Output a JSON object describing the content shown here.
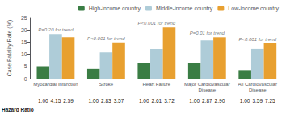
{
  "chart_data": {
    "type": "bar",
    "categories": [
      "Myocardial Infarction",
      "Stroke",
      "Heart Failure",
      "Major Cardiovascular\nDisease",
      "All Cardiovascular\nDisease"
    ],
    "series": [
      {
        "name": "High-income country",
        "color": "#3a7d44",
        "values": [
          5.1,
          4.0,
          6.3,
          6.5,
          3.5
        ],
        "hazard_ratios": [
          "1.00",
          "1.00",
          "1.00",
          "1.00",
          "1.00"
        ]
      },
      {
        "name": "Middle-income country",
        "color": "#aeccd8",
        "values": [
          18.3,
          10.8,
          12.2,
          15.7,
          12.2
        ],
        "hazard_ratios": [
          "4.15",
          "2.83",
          "2.61",
          "2.87",
          "3.59"
        ]
      },
      {
        "name": "Low-income country",
        "color": "#e8a030",
        "values": [
          17.0,
          14.9,
          21.0,
          17.0,
          14.6
        ],
        "hazard_ratios": [
          "2.59",
          "3.57",
          "3.72",
          "2.90",
          "7.25"
        ]
      }
    ],
    "ylabel": "Case Fatality Rate (%)",
    "ylim": [
      0,
      25
    ],
    "yticks": [
      0,
      5,
      10,
      15,
      20,
      25
    ],
    "p_values": [
      "P=0.20 for trend",
      "P<0.001 for trend",
      "P<0.001 for trend",
      "P=0.01 for trend",
      "P<0.001 for trend"
    ],
    "hr_label": "Hazard Ratio",
    "grid": false,
    "legend": "upper right"
  }
}
